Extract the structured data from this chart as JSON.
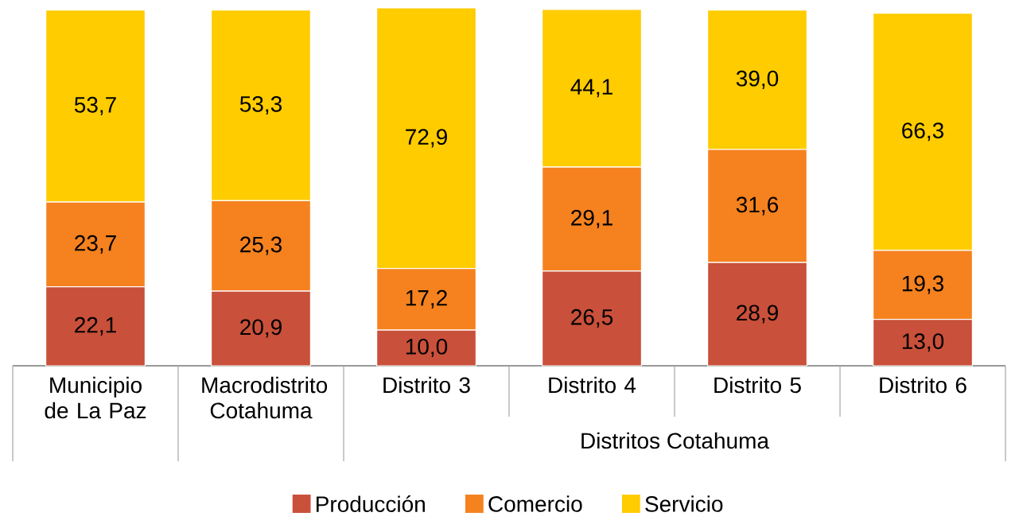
{
  "chart_data": {
    "type": "bar",
    "stacked": true,
    "legend": "bottom",
    "categories": [
      "Municipio de La Paz",
      "Macrodistrito Cotahuma",
      "Distrito 3",
      "Distrito 4",
      "Distrito 5",
      "Distrito 6"
    ],
    "series": [
      {
        "name": "Producción",
        "color": "#c9503a",
        "values": [
          22.1,
          20.9,
          10.0,
          26.5,
          28.9,
          13.0
        ],
        "value_labels": [
          "22,1",
          "20,9",
          "10,0",
          "26,5",
          "28,9",
          "13,0"
        ]
      },
      {
        "name": "Comercio",
        "color": "#f5821f",
        "values": [
          23.7,
          25.3,
          17.2,
          29.1,
          31.6,
          19.3
        ],
        "value_labels": [
          "23,7",
          "25,3",
          "17,2",
          "29,1",
          "31,6",
          "19,3"
        ]
      },
      {
        "name": "Servicio",
        "color": "#ffcc00",
        "values": [
          53.7,
          53.3,
          72.9,
          44.1,
          39.0,
          66.3
        ],
        "value_labels": [
          "53,7",
          "53,3",
          "72,9",
          "44,1",
          "39,0",
          "66,3"
        ]
      }
    ],
    "annotations": [
      "Distritos Cotahuma"
    ]
  }
}
